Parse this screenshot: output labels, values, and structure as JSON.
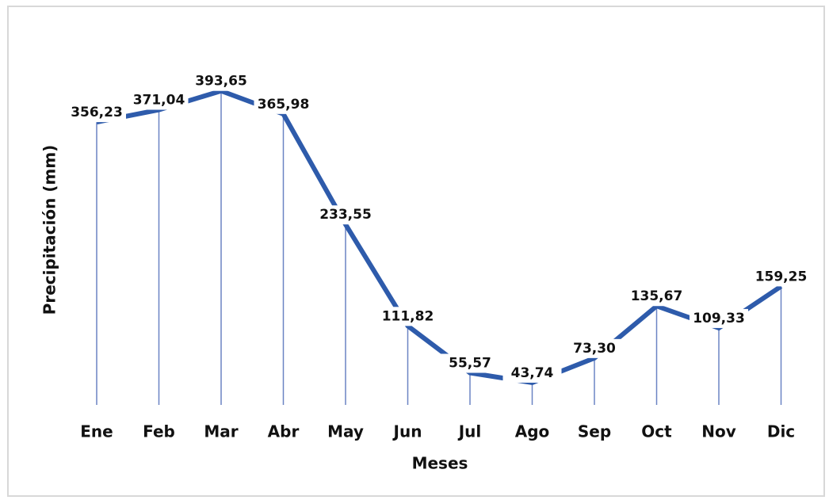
{
  "chart_data": {
    "type": "line",
    "x_label": "Meses",
    "y_label": "Precipitación (mm)",
    "categories": [
      "Ene",
      "Feb",
      "Mar",
      "Abr",
      "May",
      "Jun",
      "Jul",
      "Ago",
      "Sep",
      "Oct",
      "Nov",
      "Dic"
    ],
    "values": [
      356.23,
      371.04,
      393.65,
      365.98,
      233.55,
      111.82,
      55.57,
      43.74,
      73.3,
      135.67,
      109.33,
      159.25
    ],
    "value_labels": [
      "356,23",
      "371,04",
      "393,65",
      "365,98",
      "233,55",
      "111,82",
      "55,57",
      "43,74",
      "73,30",
      "135,67",
      "109,33",
      "159,25"
    ],
    "color": "#2e5bab",
    "ylim": [
      0,
      420
    ]
  }
}
